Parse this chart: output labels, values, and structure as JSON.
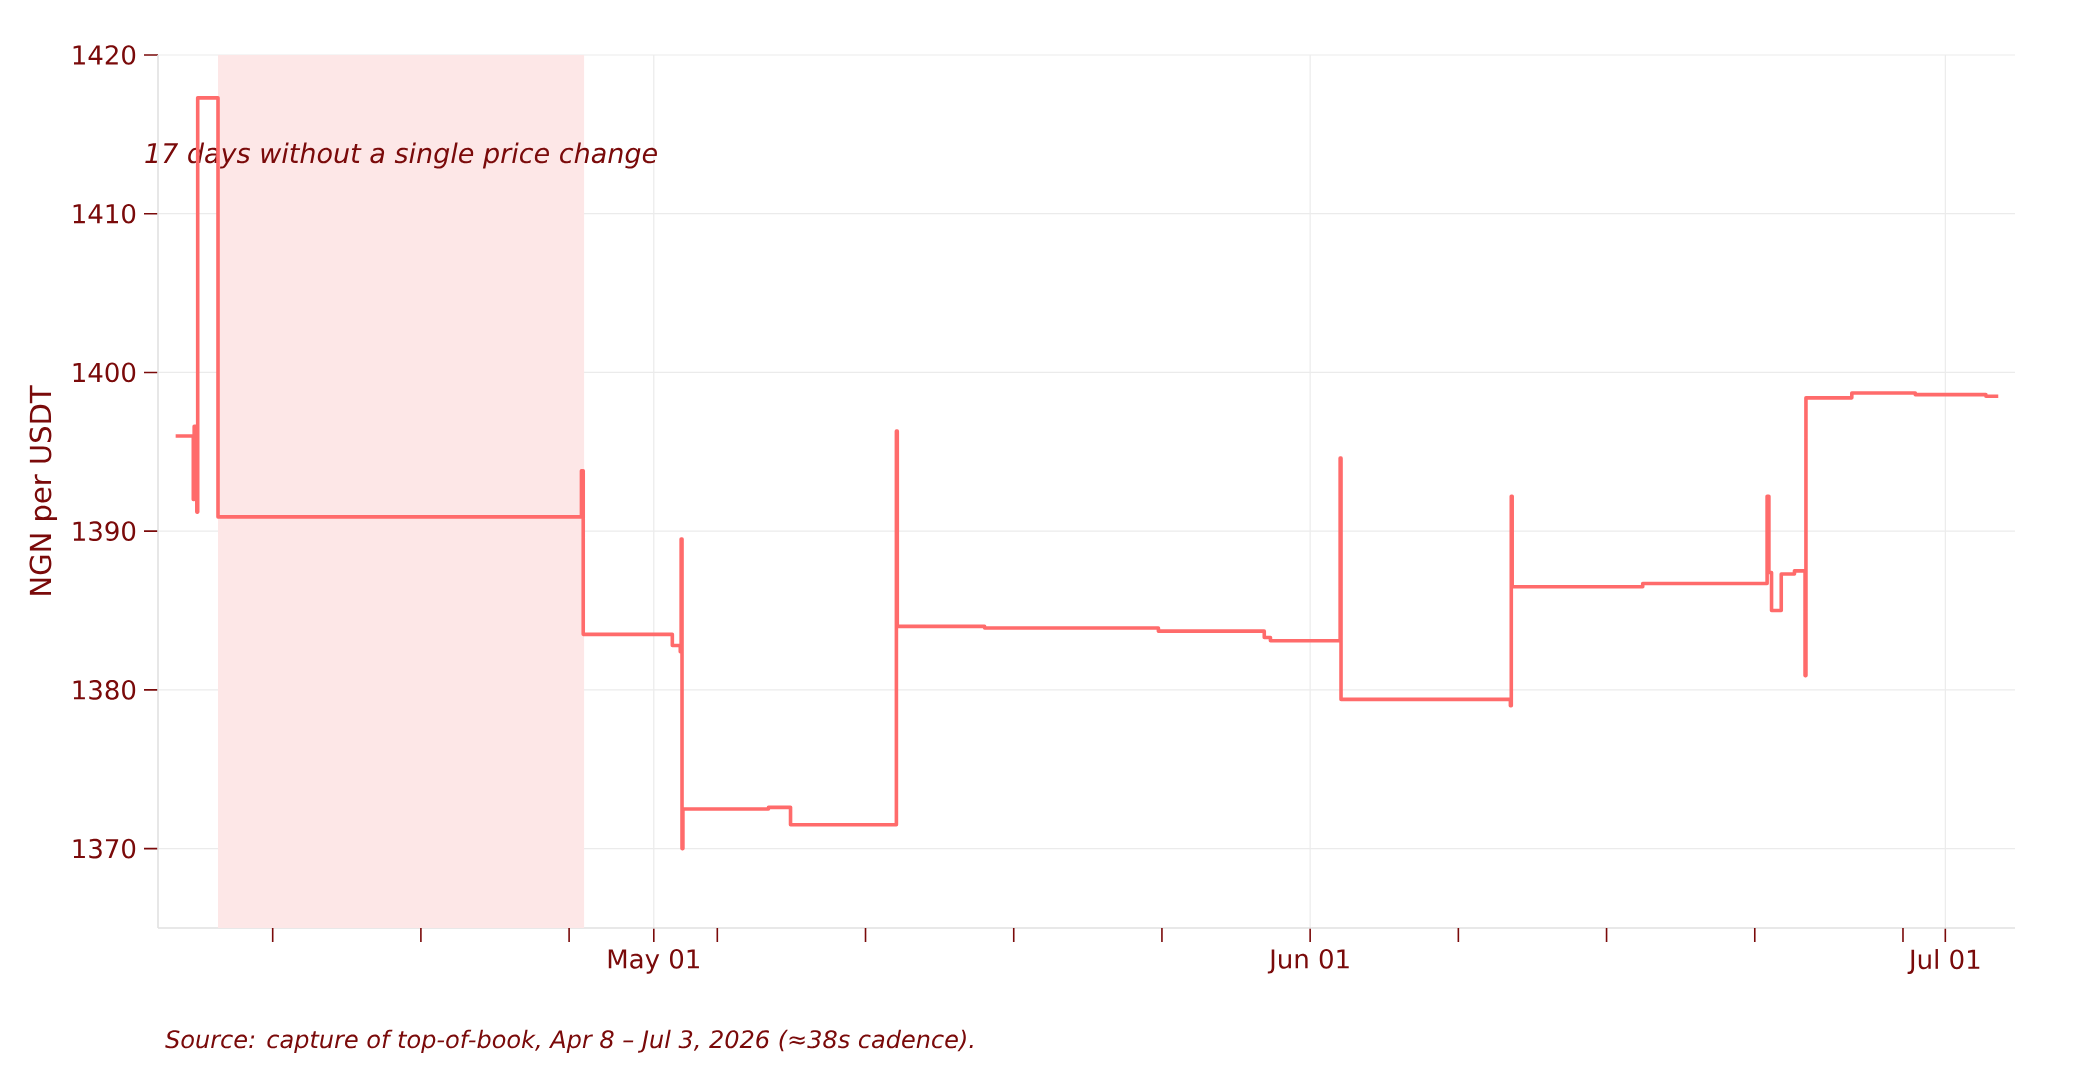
{
  "chart_data": {
    "type": "step",
    "ylabel": "NGN per USDT",
    "annotations": [
      "Source: capture of top-of-book, Apr 8 – Jul 3, 2026 (≈38s cadence)."
    ],
    "x": [
      "2026-04-08T10:00",
      "2026-04-09T06:00",
      "2026-04-09T07:00",
      "2026-04-09T10:00",
      "2026-04-09T11:00",
      "2026-04-10T10:00",
      "2026-04-27T14:00",
      "2026-04-27T16:00",
      "2026-05-01T21:00",
      "2026-05-02T06:00",
      "2026-05-02T07:00",
      "2026-05-02T08:00",
      "2026-05-02T09:00",
      "2026-05-06T10:00",
      "2026-05-07T11:00",
      "2026-05-12T11:00",
      "2026-05-12T12:00",
      "2026-05-16T15:00",
      "2026-05-24T20:00",
      "2026-05-29T20:00",
      "2026-05-30T03:00",
      "2026-06-02T10:00",
      "2026-06-02T11:00",
      "2026-06-10T11:00",
      "2026-06-10T12:00",
      "2026-06-10T13:00",
      "2026-06-16T17:00",
      "2026-06-22T14:00",
      "2026-06-22T16:00",
      "2026-06-22T19:00",
      "2026-06-23T06:00",
      "2026-06-23T21:00",
      "2026-06-24T09:00",
      "2026-06-24T10:00",
      "2026-06-26T14:00",
      "2026-06-29T14:00",
      "2026-07-02T22:00",
      "2026-07-03T12:00"
    ],
    "series": [
      {
        "color": "#ff6b6b",
        "values": [
          1396.0,
          1392.0,
          1396.6,
          1391.2,
          1417.3,
          1390.9,
          1393.8,
          1383.5,
          1382.8,
          1382.4,
          1389.5,
          1370.0,
          1372.5,
          1372.6,
          1371.5,
          1396.3,
          1384.0,
          1383.9,
          1383.7,
          1383.3,
          1383.1,
          1394.6,
          1379.4,
          1379.0,
          1392.2,
          1386.5,
          1386.7,
          1392.2,
          1387.4,
          1385.0,
          1387.3,
          1387.5,
          1380.9,
          1398.4,
          1398.7,
          1398.6,
          1398.5,
          1398.5
        ]
      }
    ],
    "xlim": [
      "2026-04-07T14:00",
      "2026-07-04T07:00"
    ],
    "ylim": [
      1365,
      1420
    ],
    "yticks": [
      1370,
      1380,
      1390,
      1400,
      1410,
      1420
    ],
    "xticks": [
      {
        "value": "2026-04-13",
        "label": null
      },
      {
        "value": "2026-04-20",
        "label": null
      },
      {
        "value": "2026-04-27",
        "label": null
      },
      {
        "value": "2026-05-01",
        "label": "May 01"
      },
      {
        "value": "2026-05-04",
        "label": null
      },
      {
        "value": "2026-05-11",
        "label": null
      },
      {
        "value": "2026-05-18",
        "label": null
      },
      {
        "value": "2026-05-25",
        "label": null
      },
      {
        "value": "2026-06-01",
        "label": "Jun 01"
      },
      {
        "value": "2026-06-08",
        "label": null
      },
      {
        "value": "2026-06-15",
        "label": null
      },
      {
        "value": "2026-06-22",
        "label": null
      },
      {
        "value": "2026-06-29",
        "label": null
      },
      {
        "value": "2026-07-01",
        "label": "Jul 01"
      }
    ],
    "bands": [
      {
        "axis": "x",
        "from": "2026-04-10T10:00",
        "to": "2026-04-27T17:00",
        "label": "17 days without a single price change",
        "color": "#fde7e7"
      }
    ],
    "grid": true,
    "line_style": "solid",
    "marker": "none"
  }
}
